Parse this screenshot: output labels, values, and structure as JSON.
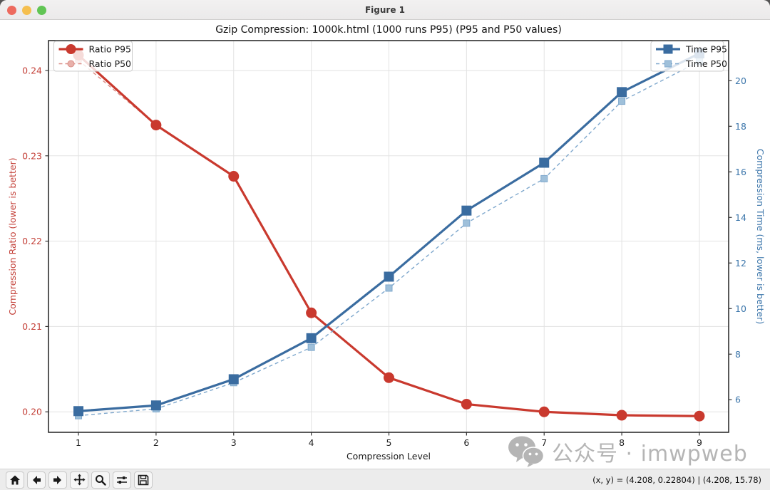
{
  "window": {
    "title": "Figure 1",
    "traffic_lights": {
      "close": "#ed6a5e",
      "minimize": "#f5bf4f",
      "zoom": "#61c554"
    }
  },
  "chart_data": {
    "type": "line",
    "title": "Gzip Compression: 1000k.html (1000 runs P95) (P95 and P50 values)",
    "xlabel": "Compression Level",
    "ylabel_left": "Compression Ratio (lower is better)",
    "ylabel_right": "Compression Time (ms, lower is better)",
    "x": [
      1,
      2,
      3,
      4,
      5,
      6,
      7,
      8,
      9
    ],
    "series": [
      {
        "name": "Ratio P50",
        "axis": "left",
        "style": "dashed",
        "marker": "circle",
        "size": "small",
        "line_color": "#d98c85",
        "marker_fill": "#e8b0aa",
        "values": [
          0.2412,
          0.2336,
          0.2276,
          0.2116,
          0.204,
          0.2009,
          0.2,
          0.1996,
          0.1995
        ]
      },
      {
        "name": "Ratio P95",
        "axis": "left",
        "style": "solid",
        "marker": "circle",
        "size": "big",
        "line_color": "#c9392e",
        "marker_fill": "#c9392e",
        "values": [
          0.2418,
          0.2336,
          0.2276,
          0.2116,
          0.204,
          0.2009,
          0.2,
          0.1996,
          0.1995
        ]
      },
      {
        "name": "Time P50",
        "axis": "right",
        "style": "dashed",
        "marker": "square",
        "size": "small",
        "line_color": "#7fa8cd",
        "marker_fill": "#9fc0da",
        "values": [
          5.3,
          5.6,
          6.75,
          8.3,
          10.9,
          13.75,
          15.7,
          19.1,
          20.85
        ]
      },
      {
        "name": "Time P95",
        "axis": "right",
        "style": "solid",
        "marker": "square",
        "size": "big",
        "line_color": "#3a6ca0",
        "marker_fill": "#3a6ca0",
        "values": [
          5.5,
          5.75,
          6.9,
          8.7,
          11.4,
          14.3,
          16.4,
          19.5,
          21.2
        ]
      }
    ],
    "x_axis": {
      "ticks": [
        1,
        2,
        3,
        4,
        5,
        6,
        7,
        8,
        9
      ],
      "range": [
        0.614,
        9.377
      ],
      "color": "#222222"
    },
    "left_axis": {
      "ticks": [
        0.2,
        0.21,
        0.22,
        0.23,
        0.24
      ],
      "range": [
        0.1976,
        0.2435
      ],
      "color": "#c4423a"
    },
    "right_axis": {
      "ticks": [
        6,
        8,
        10,
        12,
        14,
        16,
        18,
        20
      ],
      "range": [
        4.57,
        21.76
      ],
      "color": "#3c76ab"
    },
    "legend_left": [
      "Ratio P95",
      "Ratio P50"
    ],
    "legend_right": [
      "Time P95",
      "Time P50"
    ],
    "grid": true,
    "grid_color": "#e2e2e2"
  },
  "toolbar": {
    "buttons": [
      {
        "name": "Home"
      },
      {
        "name": "Back"
      },
      {
        "name": "Forward"
      },
      {
        "name": "Pan"
      },
      {
        "name": "Zoom"
      },
      {
        "name": "Configure subplots"
      },
      {
        "name": "Save"
      }
    ],
    "status": "(x, y) = (4.208, 0.22804) | (4.208, 15.78)"
  },
  "watermark": {
    "text": "公众号 · imwpweb",
    "color": "#b5b5b5"
  }
}
